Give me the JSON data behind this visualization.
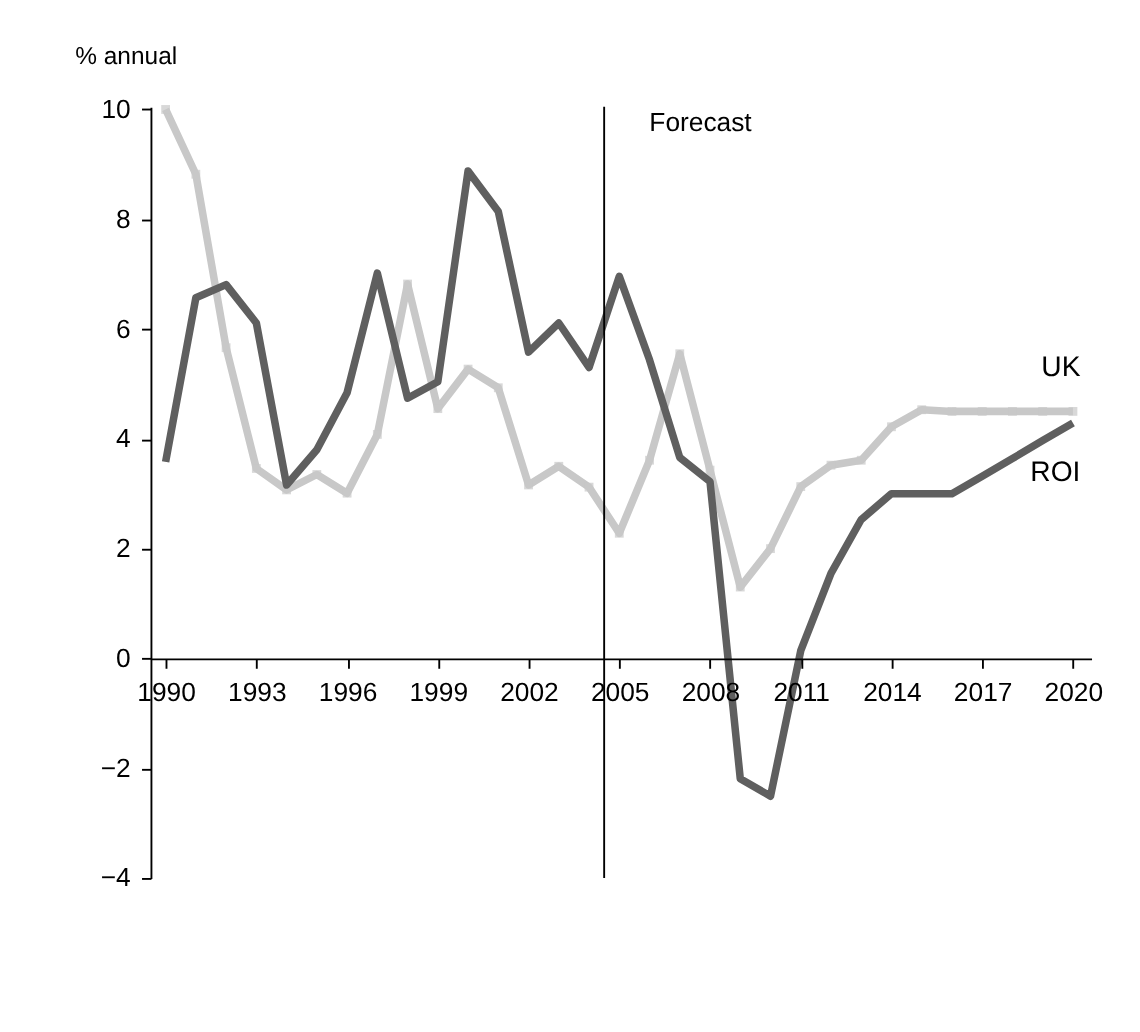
{
  "chart_data": {
    "type": "line",
    "ylabel": "% annual",
    "x": [
      1990,
      1991,
      1992,
      1993,
      1994,
      1995,
      1996,
      1997,
      1998,
      1999,
      2000,
      2001,
      2002,
      2003,
      2004,
      2005,
      2006,
      2007,
      2008,
      2009,
      2010,
      2011,
      2012,
      2013,
      2014,
      2015,
      2016,
      2017,
      2018,
      2019,
      2020
    ],
    "series": [
      {
        "name": "UK",
        "color": "#c8c8c8",
        "marker": "square",
        "values": [
          10.0,
          8.82,
          5.66,
          3.46,
          3.07,
          3.35,
          3.01,
          4.08,
          6.82,
          4.55,
          5.27,
          4.93,
          3.16,
          3.5,
          3.12,
          2.28,
          3.61,
          5.55,
          3.43,
          1.3,
          2.0,
          3.13,
          3.52,
          3.61,
          4.22,
          4.53,
          4.5,
          4.5,
          4.5,
          4.5,
          4.5
        ]
      },
      {
        "name": "ROI",
        "color": "#5f5f5f",
        "marker": "none",
        "values": [
          3.58,
          6.57,
          6.81,
          6.11,
          3.16,
          3.8,
          4.84,
          7.02,
          4.74,
          5.04,
          8.88,
          8.14,
          5.58,
          6.11,
          5.3,
          6.96,
          5.44,
          3.66,
          3.22,
          -2.19,
          -2.51,
          0.14,
          1.55,
          2.53,
          3.0,
          3.0,
          3.0,
          3.32,
          3.64,
          3.97,
          4.29
        ]
      }
    ],
    "xlim": [
      1989.5,
      2020.6
    ],
    "xticks": [
      1990,
      1993,
      1996,
      1999,
      2002,
      2005,
      2008,
      2011,
      2014,
      2017,
      2020
    ],
    "ylim": [
      -4,
      10.05
    ],
    "yticks": [
      -4,
      -2,
      0,
      2,
      4,
      6,
      8,
      10
    ],
    "ref_lines": [
      {
        "axis": "x",
        "value": 2004.5,
        "label": "Forecast",
        "color": "#000000"
      }
    ],
    "grid": false,
    "line_style": "solid"
  }
}
